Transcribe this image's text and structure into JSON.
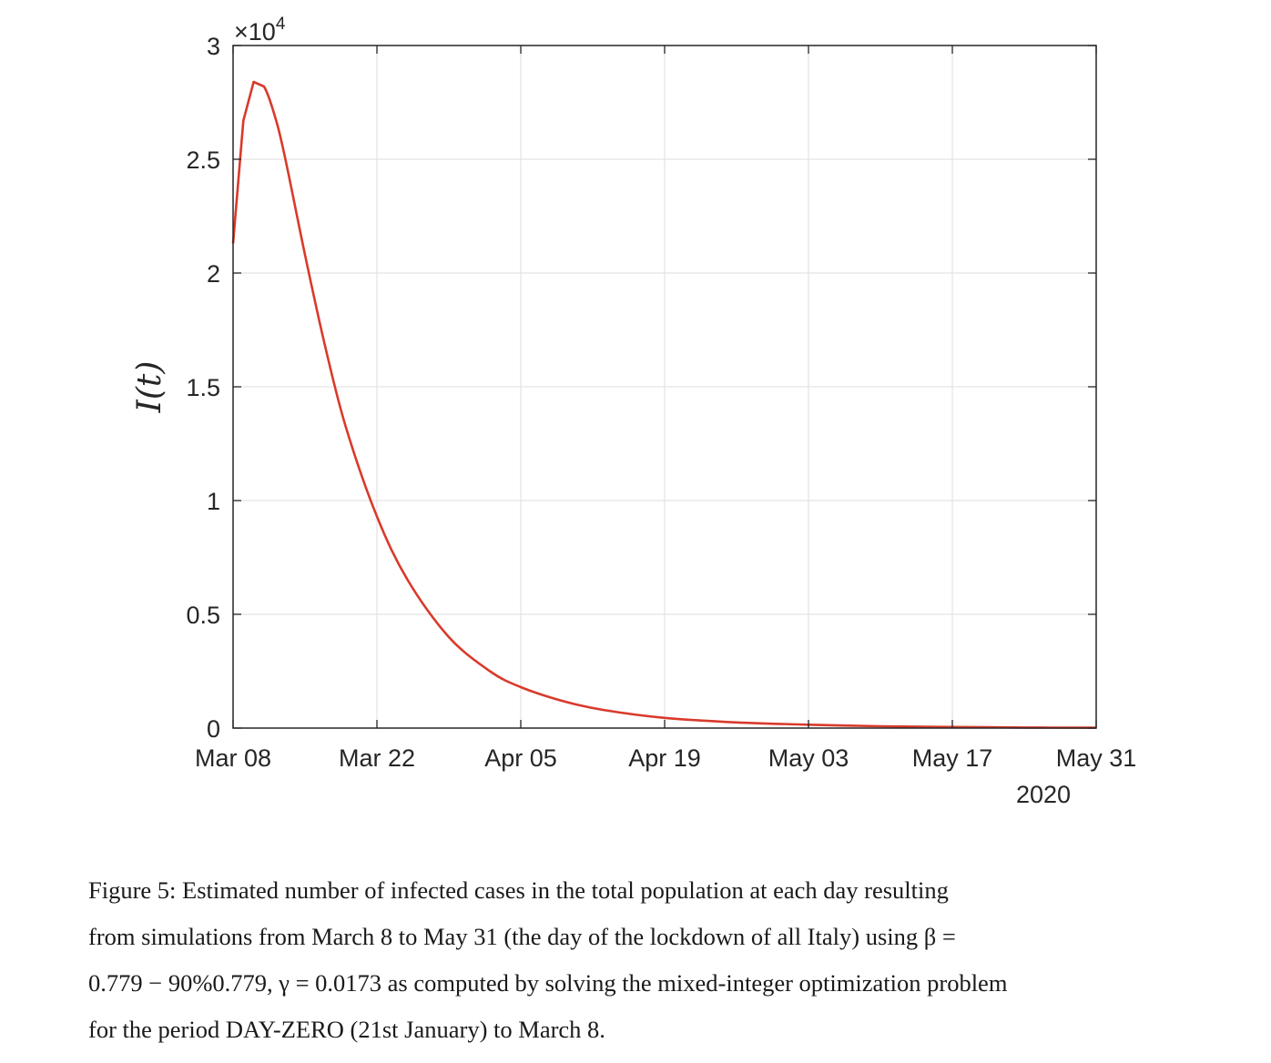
{
  "chart_data": {
    "type": "line",
    "x_axis": {
      "type": "date",
      "tick_labels": [
        "Mar 08",
        "Mar 22",
        "Apr 05",
        "Apr 19",
        "May 03",
        "May 17",
        "May 31"
      ],
      "tick_dates": [
        "2020-03-08",
        "2020-03-22",
        "2020-04-05",
        "2020-04-19",
        "2020-05-03",
        "2020-05-17",
        "2020-05-31"
      ],
      "secondary_label": "2020",
      "range": [
        "2020-03-08",
        "2020-05-31"
      ]
    },
    "y_axis": {
      "label": "I(t)",
      "multiplier_prefix": "×10",
      "multiplier_exponent": "4",
      "tick_labels": [
        "0",
        "0.5",
        "1",
        "1.5",
        "2",
        "2.5",
        "3"
      ],
      "tick_values": [
        0,
        5000,
        10000,
        15000,
        20000,
        25000,
        30000
      ],
      "range": [
        0,
        30000
      ]
    },
    "grid": true,
    "series": [
      {
        "color": "#d93a2b",
        "x": [
          "2020-03-08",
          "2020-03-09",
          "2020-03-10",
          "2020-03-11",
          "2020-03-12",
          "2020-03-13",
          "2020-03-15",
          "2020-03-17",
          "2020-03-19",
          "2020-03-22",
          "2020-03-25",
          "2020-03-29",
          "2020-04-02",
          "2020-04-05",
          "2020-04-09",
          "2020-04-13",
          "2020-04-19",
          "2020-04-26",
          "2020-05-03",
          "2020-05-10",
          "2020-05-17",
          "2020-05-24",
          "2020-05-31"
        ],
        "y": [
          21300,
          26700,
          28400,
          28200,
          27000,
          25200,
          20800,
          16700,
          13200,
          9300,
          6500,
          4000,
          2500,
          1800,
          1200,
          800,
          450,
          250,
          150,
          80,
          50,
          25,
          15
        ]
      }
    ]
  },
  "caption": {
    "line1": "Figure 5: Estimated number of infected cases in the total population at each day resulting",
    "line2": "from simulations from March 8 to May 31 (the day of the lockdown of all Italy) using β =",
    "line3": "0.779 − 90%0.779, γ = 0.0173 as computed by solving the mixed-integer optimization problem",
    "line4": "for the period DAY-ZERO (21st January) to March 8."
  }
}
